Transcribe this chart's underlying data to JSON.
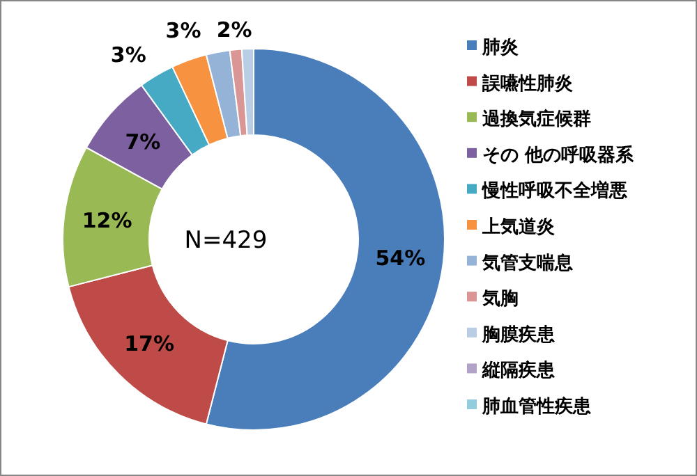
{
  "chart_data": {
    "type": "donut",
    "categories": [
      "肺炎",
      "誤嚥性肺炎",
      "過換気症候群",
      "その 他の呼吸器系",
      "慢性呼吸不全増悪",
      "上気道炎",
      "気管支喘息",
      "気胸",
      "胸膜疾患",
      "縦隔疾患",
      "肺血管性疾患"
    ],
    "values": [
      54,
      17,
      12,
      7,
      3,
      3,
      2,
      1,
      1,
      0,
      0
    ],
    "colors": [
      "#4a7ebb",
      "#be4b48",
      "#98b954",
      "#7d60a0",
      "#46aac5",
      "#f69240",
      "#95b3d7",
      "#d99694",
      "#b9cde5",
      "#b3a2c7",
      "#93cddd"
    ],
    "value_labels": [
      "54%",
      "17%",
      "12%",
      "7%",
      "3%",
      "3%",
      "2%",
      null,
      null,
      null,
      null
    ],
    "annotations": [
      "N=429"
    ],
    "legend": "right"
  }
}
